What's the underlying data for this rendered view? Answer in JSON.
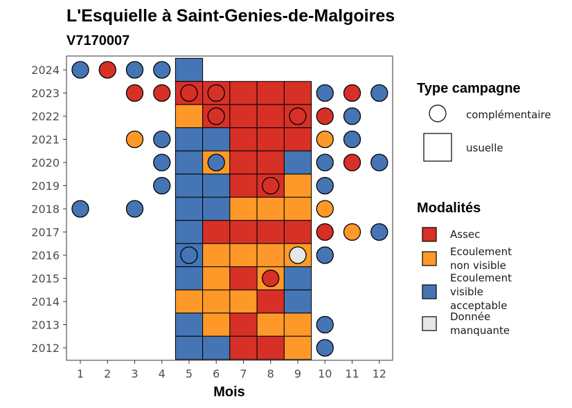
{
  "title": "L'Esquielle à Saint-Genies-de-Malgoires",
  "subtitle": "V7170007",
  "colors": {
    "Assec": "#d73027",
    "Ecoulement non visible": "#fe9929",
    "Ecoulement visible acceptable": "#4575b4",
    "Donnée manquante": "#e6e6e6"
  },
  "legend_type": {
    "title": "Type campagne",
    "items": [
      {
        "label": "complémentaire",
        "shape": "circle"
      },
      {
        "label": "usuelle",
        "shape": "square"
      }
    ]
  },
  "legend_mod": {
    "title": "Modalités",
    "items": [
      {
        "key": "Assec",
        "lines": [
          "Assec"
        ]
      },
      {
        "key": "Ecoulement non visible",
        "lines": [
          "Ecoulement",
          "non visible"
        ]
      },
      {
        "key": "Ecoulement visible acceptable",
        "lines": [
          "Ecoulement",
          "visible",
          "acceptable"
        ]
      },
      {
        "key": "Donnée manquante",
        "lines": [
          "Donnée",
          "manquante"
        ]
      }
    ]
  },
  "chart_data": {
    "type": "heatmap",
    "xlabel": "Mois",
    "ylabel": "",
    "x_ticks": [
      1,
      2,
      3,
      4,
      5,
      6,
      7,
      8,
      9,
      10,
      11,
      12
    ],
    "y_ticks": [
      2012,
      2013,
      2014,
      2015,
      2016,
      2017,
      2018,
      2019,
      2020,
      2021,
      2022,
      2023,
      2024
    ],
    "usuelle": [
      {
        "year": 2024,
        "months": [
          5
        ],
        "values": [
          "Ecoulement visible acceptable"
        ]
      },
      {
        "year": 2023,
        "months": [
          5,
          6,
          7,
          8,
          9
        ],
        "values": [
          "Assec",
          "Assec",
          "Assec",
          "Assec",
          "Assec"
        ]
      },
      {
        "year": 2022,
        "months": [
          5,
          6,
          7,
          8,
          9
        ],
        "values": [
          "Ecoulement non visible",
          "Assec",
          "Assec",
          "Assec",
          "Assec"
        ]
      },
      {
        "year": 2021,
        "months": [
          5,
          6,
          7,
          8,
          9
        ],
        "values": [
          "Ecoulement visible acceptable",
          "Ecoulement visible acceptable",
          "Assec",
          "Assec",
          "Assec"
        ]
      },
      {
        "year": 2020,
        "months": [
          5,
          6,
          7,
          8,
          9
        ],
        "values": [
          "Ecoulement visible acceptable",
          "Ecoulement non visible",
          "Assec",
          "Assec",
          "Ecoulement visible acceptable"
        ]
      },
      {
        "year": 2019,
        "months": [
          5,
          6,
          7,
          8,
          9
        ],
        "values": [
          "Ecoulement visible acceptable",
          "Ecoulement visible acceptable",
          "Assec",
          "Assec",
          "Ecoulement non visible"
        ]
      },
      {
        "year": 2018,
        "months": [
          5,
          6,
          7,
          8,
          9
        ],
        "values": [
          "Ecoulement visible acceptable",
          "Ecoulement visible acceptable",
          "Ecoulement non visible",
          "Ecoulement non visible",
          "Ecoulement non visible"
        ]
      },
      {
        "year": 2017,
        "months": [
          5,
          6,
          7,
          8,
          9
        ],
        "values": [
          "Ecoulement visible acceptable",
          "Assec",
          "Assec",
          "Assec",
          "Assec"
        ]
      },
      {
        "year": 2016,
        "months": [
          5,
          6,
          7,
          8,
          9
        ],
        "values": [
          "Ecoulement visible acceptable",
          "Ecoulement non visible",
          "Ecoulement non visible",
          "Ecoulement non visible",
          "Ecoulement non visible"
        ]
      },
      {
        "year": 2015,
        "months": [
          5,
          6,
          7,
          8,
          9
        ],
        "values": [
          "Ecoulement visible acceptable",
          "Ecoulement non visible",
          "Assec",
          "Ecoulement non visible",
          "Ecoulement visible acceptable"
        ]
      },
      {
        "year": 2014,
        "months": [
          5,
          6,
          7,
          8,
          9
        ],
        "values": [
          "Ecoulement non visible",
          "Ecoulement non visible",
          "Ecoulement non visible",
          "Assec",
          "Ecoulement visible acceptable"
        ]
      },
      {
        "year": 2013,
        "months": [
          5,
          6,
          7,
          8,
          9
        ],
        "values": [
          "Ecoulement visible acceptable",
          "Ecoulement non visible",
          "Assec",
          "Ecoulement non visible",
          "Ecoulement non visible"
        ]
      },
      {
        "year": 2012,
        "months": [
          5,
          6,
          7,
          8,
          9
        ],
        "values": [
          "Ecoulement visible acceptable",
          "Ecoulement visible acceptable",
          "Assec",
          "Assec",
          "Ecoulement non visible"
        ]
      }
    ],
    "complementaire": [
      {
        "year": 2024,
        "months": [
          1,
          2,
          3,
          4
        ],
        "values": [
          "Ecoulement visible acceptable",
          "Assec",
          "Ecoulement visible acceptable",
          "Ecoulement visible acceptable"
        ]
      },
      {
        "year": 2023,
        "months": [
          3,
          4,
          5,
          6,
          10,
          11,
          12
        ],
        "values": [
          "Assec",
          "Assec",
          "Assec",
          "Assec",
          "Ecoulement visible acceptable",
          "Assec",
          "Ecoulement visible acceptable"
        ]
      },
      {
        "year": 2022,
        "months": [
          6,
          9,
          10,
          11
        ],
        "values": [
          "Assec",
          "Assec",
          "Assec",
          "Ecoulement visible acceptable"
        ]
      },
      {
        "year": 2021,
        "months": [
          3,
          4,
          10,
          11
        ],
        "values": [
          "Ecoulement non visible",
          "Ecoulement visible acceptable",
          "Ecoulement non visible",
          "Ecoulement visible acceptable"
        ]
      },
      {
        "year": 2020,
        "months": [
          4,
          6,
          10,
          11,
          12
        ],
        "values": [
          "Ecoulement visible acceptable",
          "Ecoulement visible acceptable",
          "Ecoulement visible acceptable",
          "Assec",
          "Ecoulement visible acceptable"
        ]
      },
      {
        "year": 2019,
        "months": [
          4,
          8,
          10
        ],
        "values": [
          "Ecoulement visible acceptable",
          "Assec",
          "Ecoulement visible acceptable"
        ]
      },
      {
        "year": 2018,
        "months": [
          1,
          3,
          10
        ],
        "values": [
          "Ecoulement visible acceptable",
          "Ecoulement visible acceptable",
          "Ecoulement non visible"
        ]
      },
      {
        "year": 2017,
        "months": [
          10,
          11,
          12
        ],
        "values": [
          "Assec",
          "Ecoulement non visible",
          "Ecoulement visible acceptable"
        ]
      },
      {
        "year": 2016,
        "months": [
          5,
          9,
          10
        ],
        "values": [
          "Ecoulement visible acceptable",
          "Donnée manquante",
          "Ecoulement visible acceptable"
        ]
      },
      {
        "year": 2015,
        "months": [
          8
        ],
        "values": [
          "Assec"
        ]
      },
      {
        "year": 2013,
        "months": [
          10
        ],
        "values": [
          "Ecoulement visible acceptable"
        ]
      },
      {
        "year": 2012,
        "months": [
          10
        ],
        "values": [
          "Ecoulement visible acceptable"
        ]
      }
    ]
  }
}
